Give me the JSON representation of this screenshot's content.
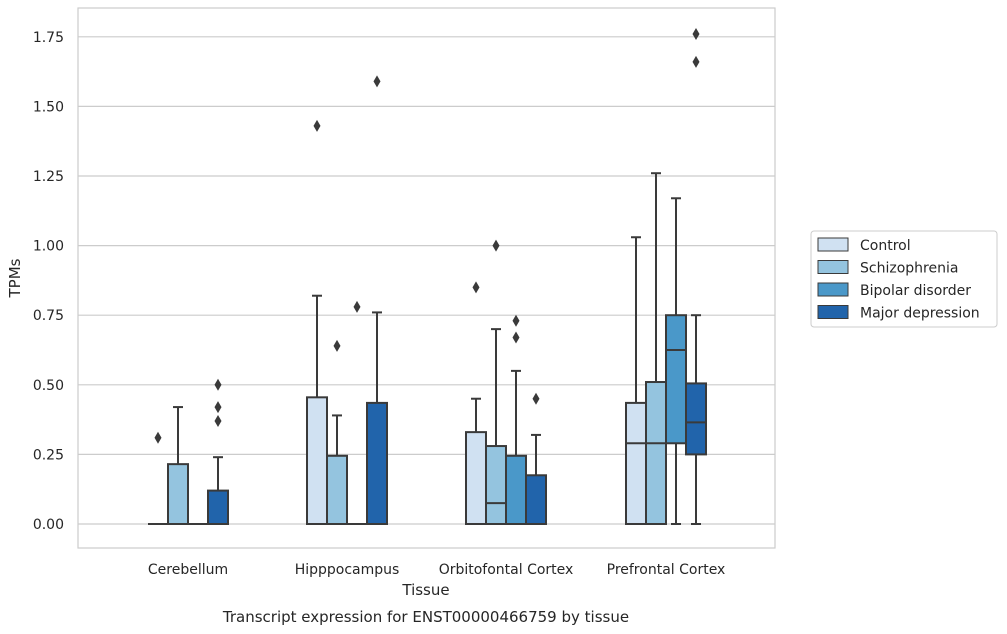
{
  "chart_data": {
    "type": "box",
    "caption": "Transcript expression for ENST00000466759 by tissue",
    "xlabel": "Tissue",
    "ylabel": "TPMs",
    "ylim": [
      -0.085,
      1.85
    ],
    "yticks": [
      "0.00",
      "0.25",
      "0.50",
      "0.75",
      "1.00",
      "1.25",
      "1.50",
      "1.75"
    ],
    "categories": [
      "Cerebellum",
      "Hipppocampus",
      "Orbitofontal Cortex",
      "Prefrontal Cortex"
    ],
    "grid": "horizontal",
    "legend_position": "right",
    "series": [
      {
        "name": "Control",
        "color": "#d0e1f2",
        "boxes": [
          {
            "q1": 0.0,
            "median": 0.0,
            "q3": 0.0,
            "wlo": 0.0,
            "whi": 0.0,
            "outliers": [
              0.31
            ]
          },
          {
            "q1": 0.0,
            "median": 0.0,
            "q3": 0.455,
            "wlo": 0.0,
            "whi": 0.82,
            "outliers": [
              1.43
            ]
          },
          {
            "q1": 0.0,
            "median": 0.0,
            "q3": 0.33,
            "wlo": 0.0,
            "whi": 0.45,
            "outliers": [
              0.85
            ]
          },
          {
            "q1": 0.0,
            "median": 0.29,
            "q3": 0.435,
            "wlo": 0.0,
            "whi": 1.03,
            "outliers": []
          }
        ]
      },
      {
        "name": "Schizophrenia",
        "color": "#94c4df",
        "boxes": [
          {
            "q1": 0.0,
            "median": 0.0,
            "q3": 0.215,
            "wlo": 0.0,
            "whi": 0.42,
            "outliers": []
          },
          {
            "q1": 0.0,
            "median": 0.0,
            "q3": 0.245,
            "wlo": 0.0,
            "whi": 0.39,
            "outliers": [
              0.64
            ]
          },
          {
            "q1": 0.0,
            "median": 0.075,
            "q3": 0.28,
            "wlo": 0.0,
            "whi": 0.7,
            "outliers": [
              1.0
            ]
          },
          {
            "q1": 0.0,
            "median": 0.29,
            "q3": 0.51,
            "wlo": 0.0,
            "whi": 1.26,
            "outliers": []
          }
        ]
      },
      {
        "name": "Bipolar disorder",
        "color": "#4a98c9",
        "boxes": [
          {
            "q1": 0.0,
            "median": 0.0,
            "q3": 0.0,
            "wlo": 0.0,
            "whi": 0.0,
            "outliers": []
          },
          {
            "q1": 0.0,
            "median": 0.0,
            "q3": 0.0,
            "wlo": 0.0,
            "whi": 0.0,
            "outliers": [
              0.78
            ]
          },
          {
            "q1": 0.0,
            "median": 0.0,
            "q3": 0.245,
            "wlo": 0.0,
            "whi": 0.55,
            "outliers": [
              0.67,
              0.73
            ]
          },
          {
            "q1": 0.29,
            "median": 0.625,
            "q3": 0.75,
            "wlo": 0.0,
            "whi": 1.17,
            "outliers": []
          }
        ]
      },
      {
        "name": "Major depression",
        "color": "#2164ab",
        "boxes": [
          {
            "q1": 0.0,
            "median": 0.0,
            "q3": 0.12,
            "wlo": 0.0,
            "whi": 0.24,
            "outliers": [
              0.37,
              0.42,
              0.5
            ]
          },
          {
            "q1": 0.0,
            "median": 0.0,
            "q3": 0.435,
            "wlo": 0.0,
            "whi": 0.76,
            "outliers": [
              1.59
            ]
          },
          {
            "q1": 0.0,
            "median": 0.0,
            "q3": 0.175,
            "wlo": 0.0,
            "whi": 0.32,
            "outliers": [
              0.45
            ]
          },
          {
            "q1": 0.25,
            "median": 0.365,
            "q3": 0.505,
            "wlo": 0.0,
            "whi": 0.75,
            "outliers": [
              1.66,
              1.76
            ]
          }
        ]
      }
    ]
  }
}
